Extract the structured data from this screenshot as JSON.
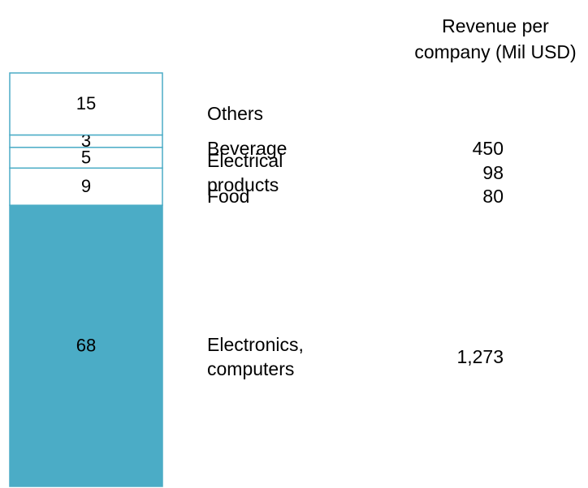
{
  "chart_data": {
    "type": "stacked_bar",
    "revenue_header": "Revenue per company (Mil USD)",
    "ylim": [
      0,
      100
    ],
    "series": [
      {
        "name": "Electronics, computers",
        "color": "#4bacc6",
        "values": [
          68
        ],
        "revenue": 1273,
        "revenue_label": "1,273"
      },
      {
        "name": "Food",
        "color": "#ffffff",
        "values": [
          9
        ],
        "revenue": 80
      },
      {
        "name": "Electrical products",
        "color": "#ffffff",
        "values": [
          5
        ],
        "revenue": 98
      },
      {
        "name": "Beverage",
        "color": "#ffffff",
        "values": [
          3
        ],
        "revenue": 450
      },
      {
        "name": "Others",
        "color": "#ffffff",
        "values": [
          15
        ]
      }
    ]
  }
}
